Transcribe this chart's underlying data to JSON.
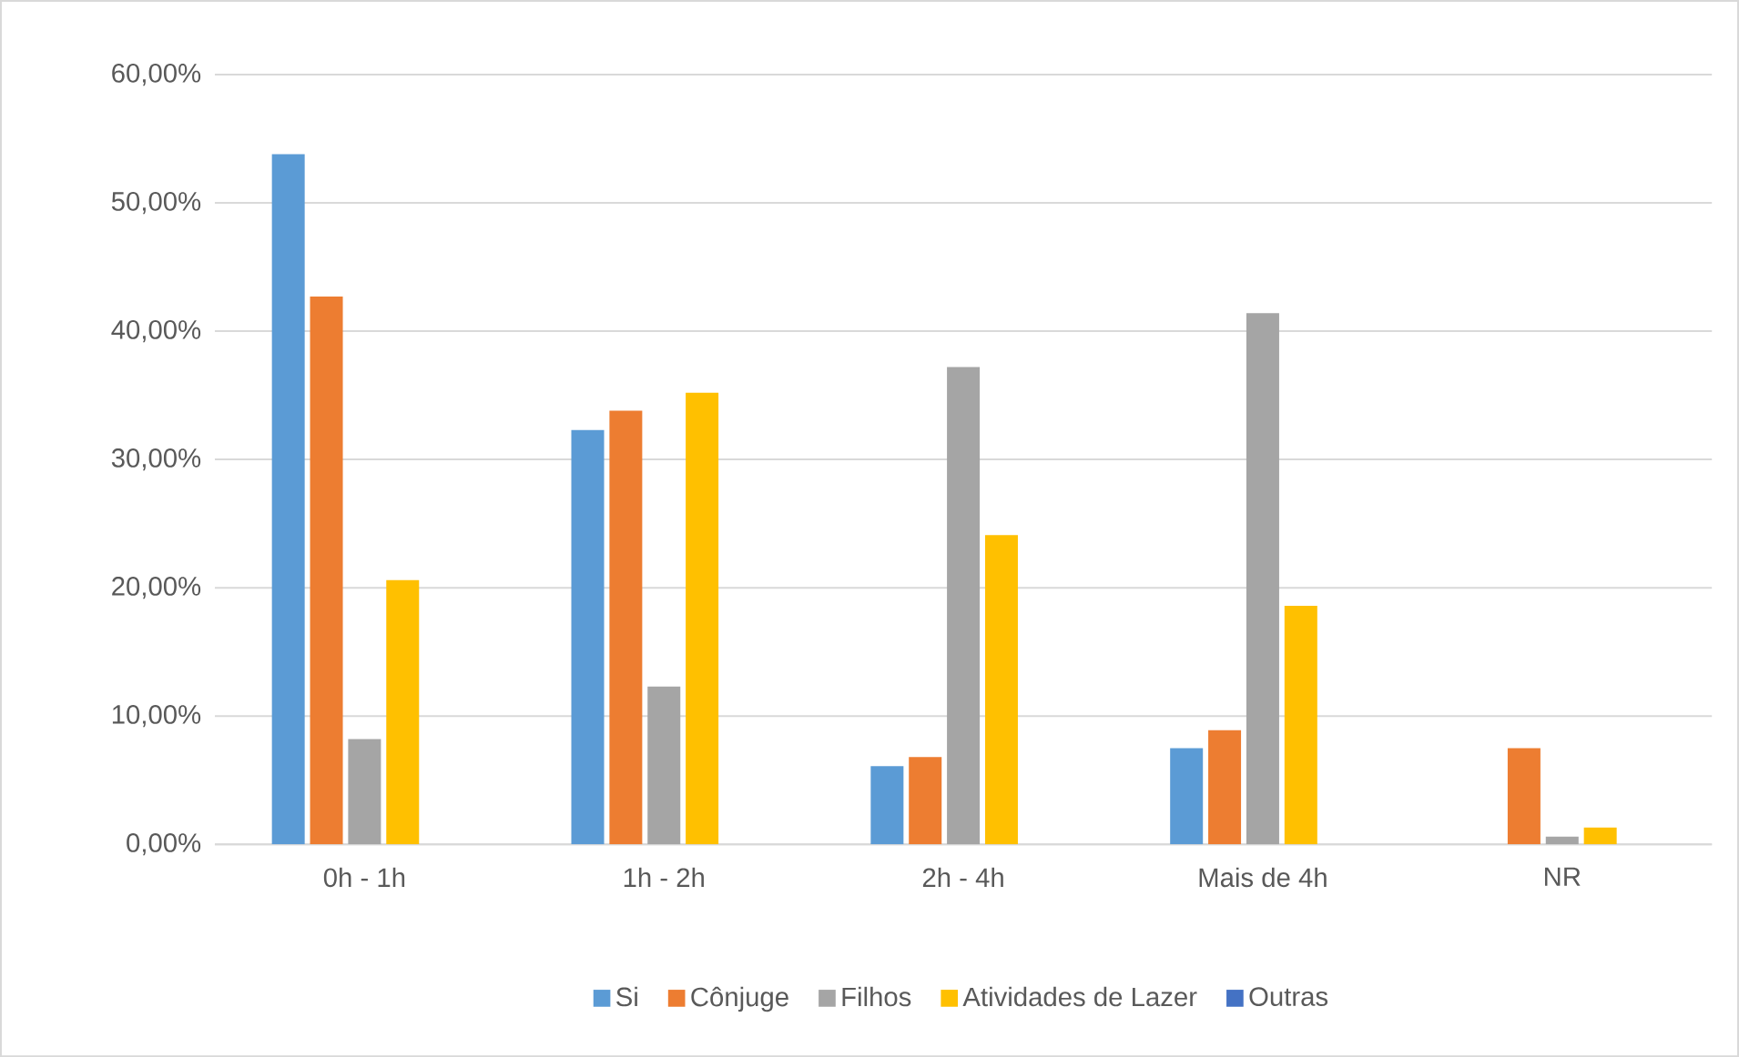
{
  "chart_data": {
    "type": "bar",
    "categories": [
      "0h - 1h",
      "1h - 2h",
      "2h - 4h",
      "Mais de 4h",
      "NR"
    ],
    "series": [
      {
        "name": "Si",
        "color": "#5b9bd5",
        "values": [
          53.8,
          32.3,
          6.1,
          7.5,
          0
        ]
      },
      {
        "name": "Cônjuge",
        "color": "#ed7d31",
        "values": [
          42.7,
          33.8,
          6.8,
          8.9,
          7.5
        ]
      },
      {
        "name": "Filhos",
        "color": "#a5a5a5",
        "values": [
          8.2,
          12.3,
          37.2,
          41.4,
          0.6
        ]
      },
      {
        "name": "Atividades de Lazer",
        "color": "#ffc000",
        "values": [
          20.6,
          35.2,
          24.1,
          18.6,
          1.3
        ]
      },
      {
        "name": "Outras",
        "color": "#4472c4",
        "values": [
          0,
          0,
          0,
          0,
          0
        ]
      }
    ],
    "ylim": [
      0,
      60
    ],
    "yticks": [
      {
        "value": 0,
        "label": "0,00%"
      },
      {
        "value": 10,
        "label": "10,00%"
      },
      {
        "value": 20,
        "label": "20,00%"
      },
      {
        "value": 30,
        "label": "30,00%"
      },
      {
        "value": 40,
        "label": "40,00%"
      },
      {
        "value": 50,
        "label": "50,00%"
      },
      {
        "value": 60,
        "label": "60,00%"
      }
    ],
    "grid": "y",
    "legend": "bottom"
  }
}
